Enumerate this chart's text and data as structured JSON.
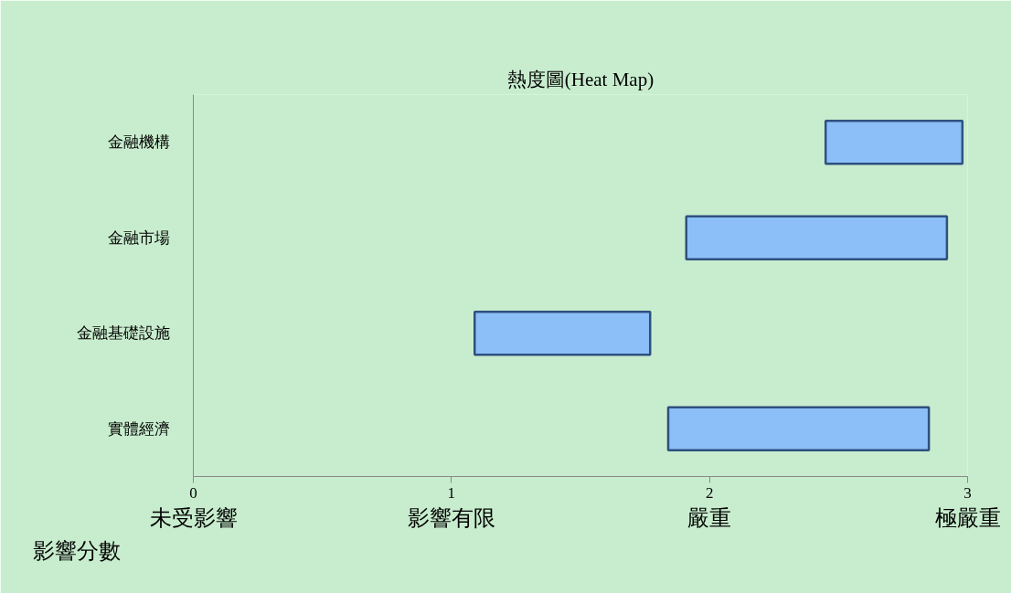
{
  "chart_data": {
    "type": "bar",
    "orientation": "horizontal",
    "title": "熱度圖(Heat Map)",
    "xlabel": "影響分數",
    "categories": [
      "金融機構",
      "金融市場",
      "金融基礎設施",
      "實體經濟"
    ],
    "base": [
      2.45,
      1.91,
      1.09,
      1.84
    ],
    "values": [
      0.53,
      1.01,
      0.68,
      1.01
    ],
    "color": "#8cbff7",
    "xlim": [
      0,
      3
    ],
    "xticks": [
      0,
      1,
      2,
      3
    ],
    "grid": false,
    "annotations": [
      "未受影響",
      "影響有限",
      "嚴重",
      "極嚴重"
    ]
  }
}
